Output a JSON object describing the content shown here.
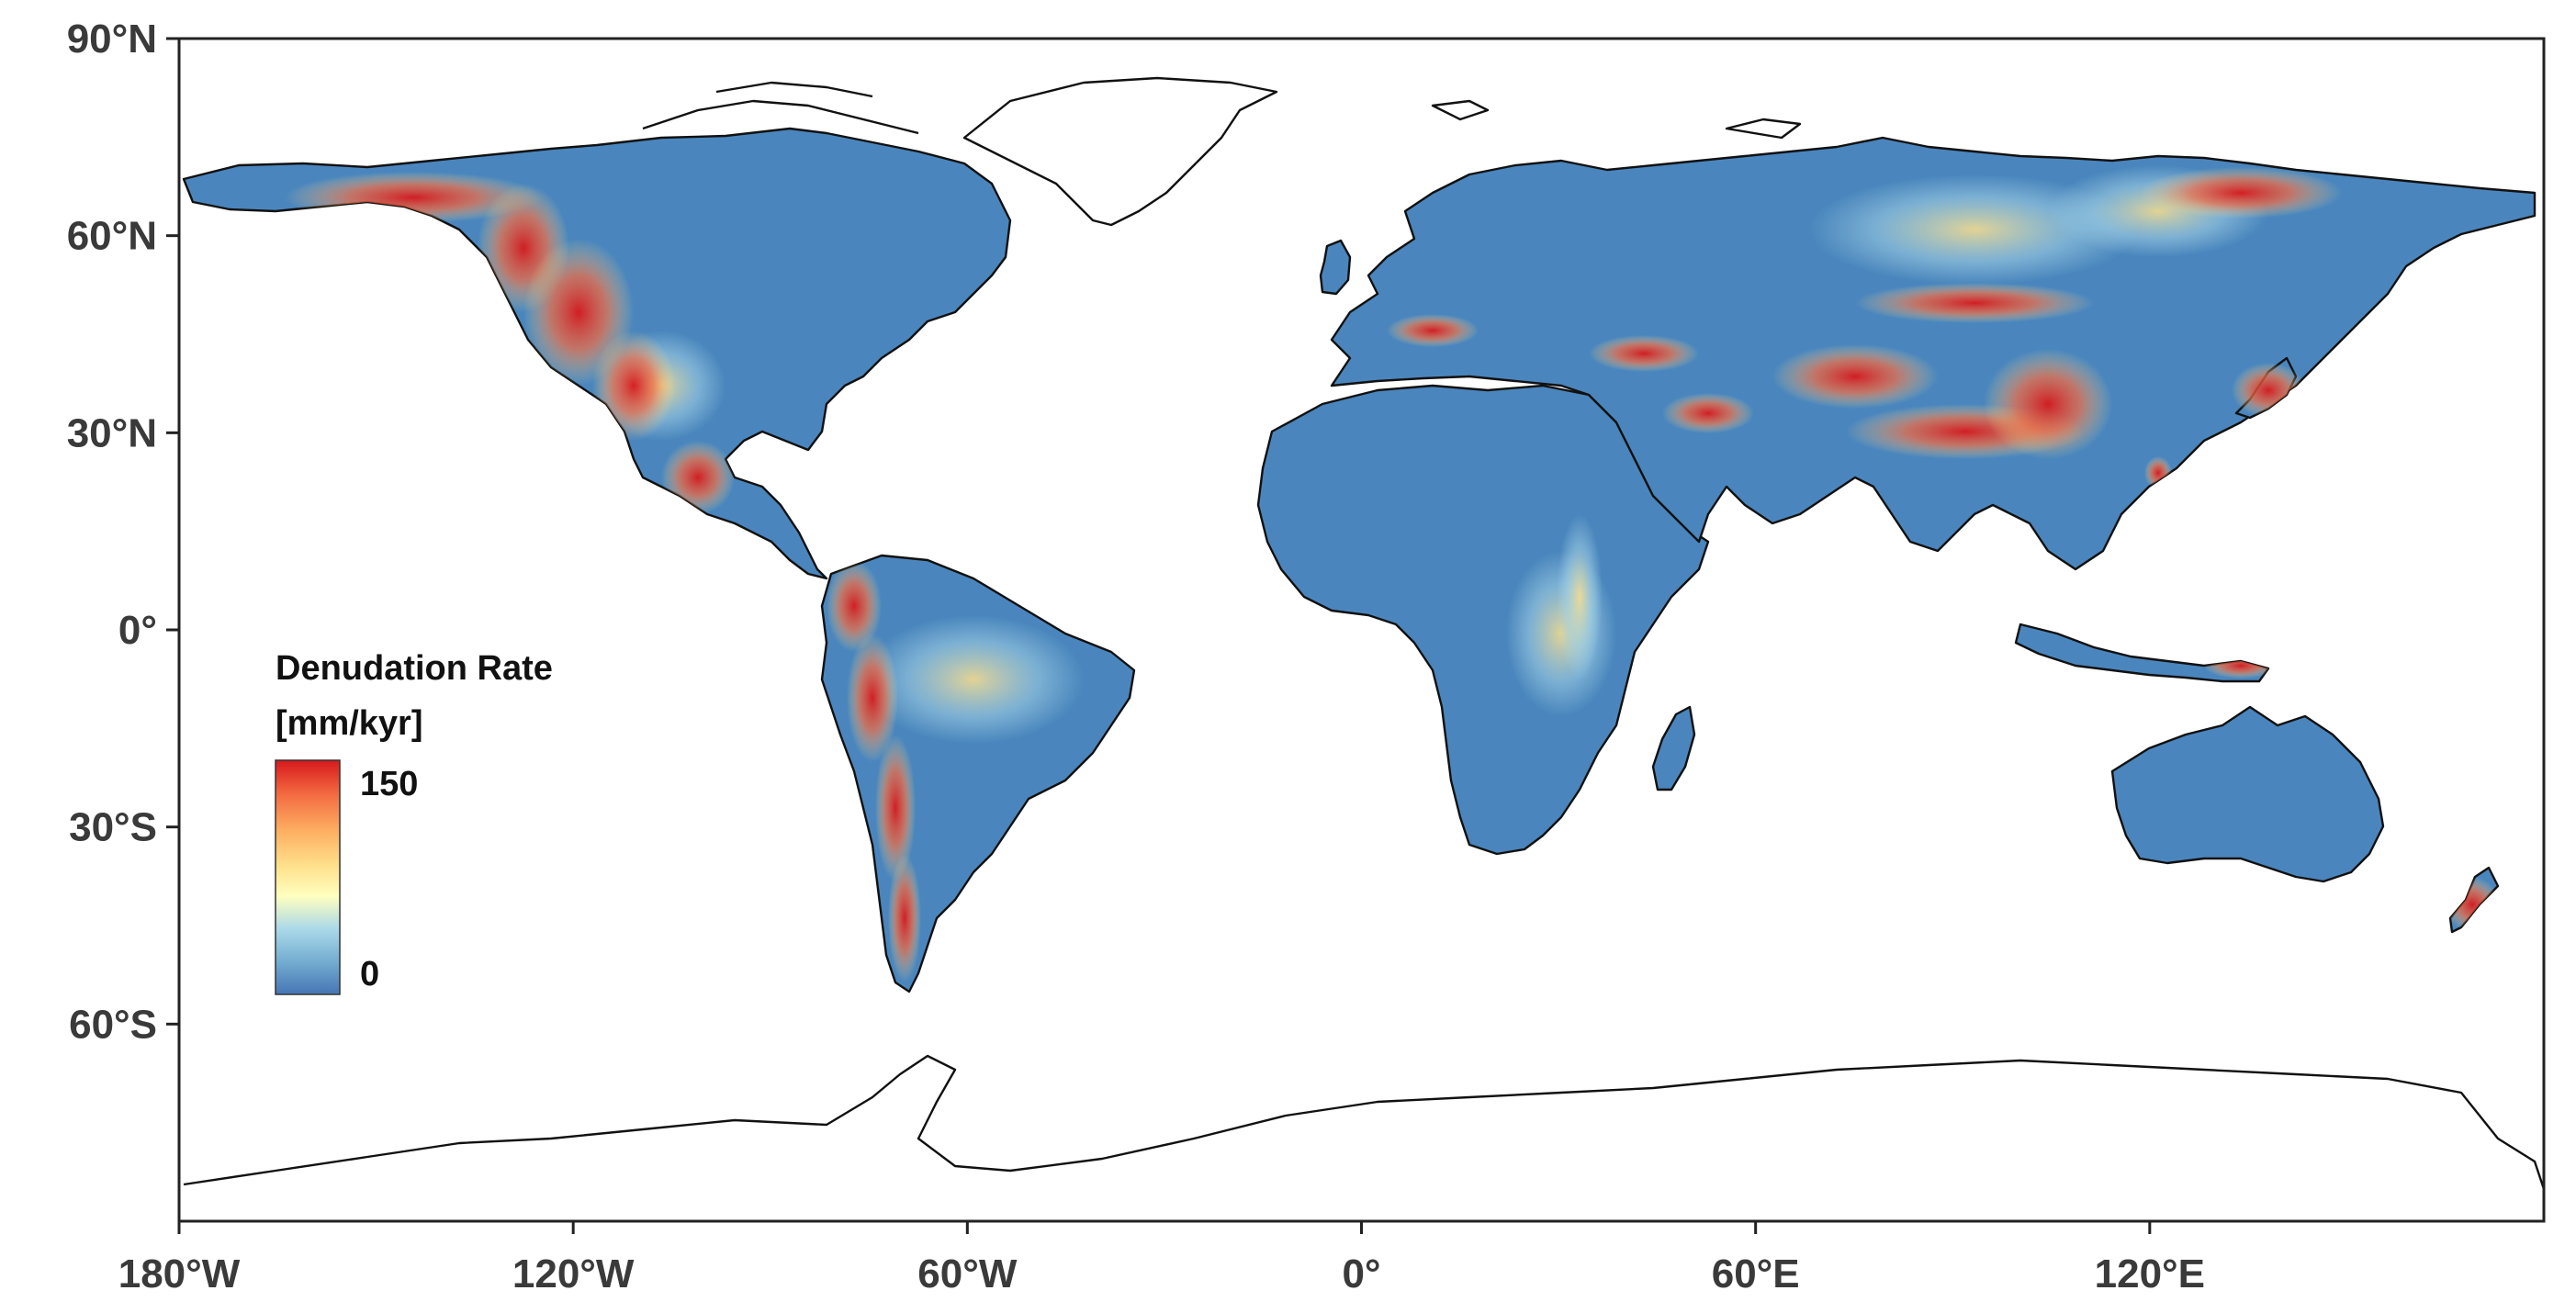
{
  "map": {
    "projection": "equirectangular",
    "lon_range": [
      -180,
      180
    ],
    "lat_range": [
      -90,
      90
    ],
    "y_ticks": [
      {
        "lat": 90,
        "label": "90°N"
      },
      {
        "lat": 60,
        "label": "60°N"
      },
      {
        "lat": 30,
        "label": "30°N"
      },
      {
        "lat": 0,
        "label": "0°"
      },
      {
        "lat": -30,
        "label": "30°S"
      },
      {
        "lat": -60,
        "label": "60°S"
      }
    ],
    "x_ticks": [
      {
        "lon": -180,
        "label": "180°W"
      },
      {
        "lon": -120,
        "label": "120°W"
      },
      {
        "lon": -60,
        "label": "60°W"
      },
      {
        "lon": 0,
        "label": "0°"
      },
      {
        "lon": 60,
        "label": "60°E"
      },
      {
        "lon": 120,
        "label": "120°E"
      }
    ]
  },
  "legend": {
    "title": "Denudation Rate",
    "unit": "[mm/kyr]",
    "max_label": "150",
    "min_label": "0",
    "colors": [
      "#d7191c",
      "#f46d43",
      "#fdae61",
      "#fee08b",
      "#ffffbf",
      "#abd9e9",
      "#74add1",
      "#4575b4"
    ]
  },
  "colors": {
    "land_base": "#4a86bd",
    "coastline": "#111111",
    "ocean": "#ffffff"
  }
}
